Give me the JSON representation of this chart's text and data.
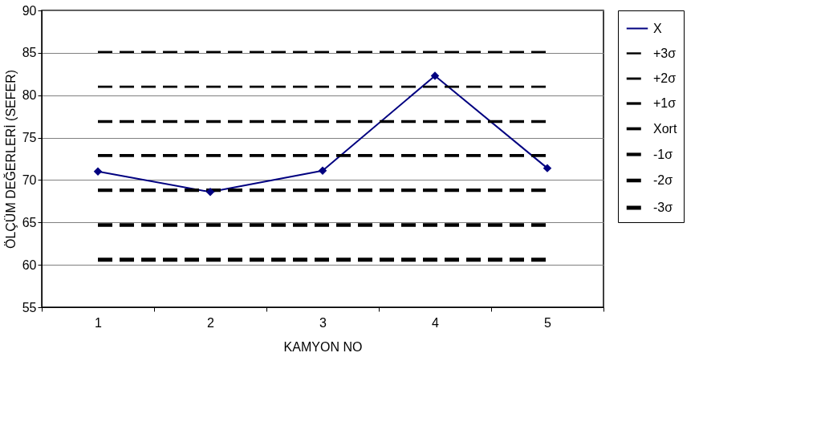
{
  "chart_data": {
    "type": "line",
    "xlabel": "KAMYON NO",
    "ylabel": "ÖLÇÜM DEĞERLERİ (SEFER)",
    "categories": [
      "1",
      "2",
      "3",
      "4",
      "5"
    ],
    "series": [
      {
        "name": "X",
        "color": "#000080",
        "values": [
          71.0,
          68.6,
          71.1,
          82.3,
          71.4
        ],
        "marker": "diamond",
        "line_style": "solid"
      },
      {
        "name": "+3σ",
        "color": "#000000",
        "values": [
          85.1,
          85.1,
          85.1,
          85.1,
          85.1
        ],
        "marker": "none",
        "line_style": "dashed"
      },
      {
        "name": "+2σ",
        "color": "#000000",
        "values": [
          81.0,
          81.0,
          81.0,
          81.0,
          81.0
        ],
        "marker": "none",
        "line_style": "dashed"
      },
      {
        "name": "+1σ",
        "color": "#000000",
        "values": [
          76.9,
          76.9,
          76.9,
          76.9,
          76.9
        ],
        "marker": "none",
        "line_style": "dashed"
      },
      {
        "name": "Xort",
        "color": "#000000",
        "values": [
          72.9,
          72.9,
          72.9,
          72.9,
          72.9
        ],
        "marker": "none",
        "line_style": "dashed"
      },
      {
        "name": "-1σ",
        "color": "#000000",
        "values": [
          68.8,
          68.8,
          68.8,
          68.8,
          68.8
        ],
        "marker": "none",
        "line_style": "dashed"
      },
      {
        "name": "-2σ",
        "color": "#000000",
        "values": [
          64.7,
          64.7,
          64.7,
          64.7,
          64.7
        ],
        "marker": "none",
        "line_style": "dashed"
      },
      {
        "name": "-3σ",
        "color": "#000000",
        "values": [
          60.6,
          60.6,
          60.6,
          60.6,
          60.6
        ],
        "marker": "none",
        "line_style": "dashed"
      }
    ],
    "ylim": [
      55,
      90
    ],
    "yticks": [
      55,
      60,
      65,
      70,
      75,
      80,
      85,
      90
    ],
    "grid": "y",
    "legend": "right"
  }
}
